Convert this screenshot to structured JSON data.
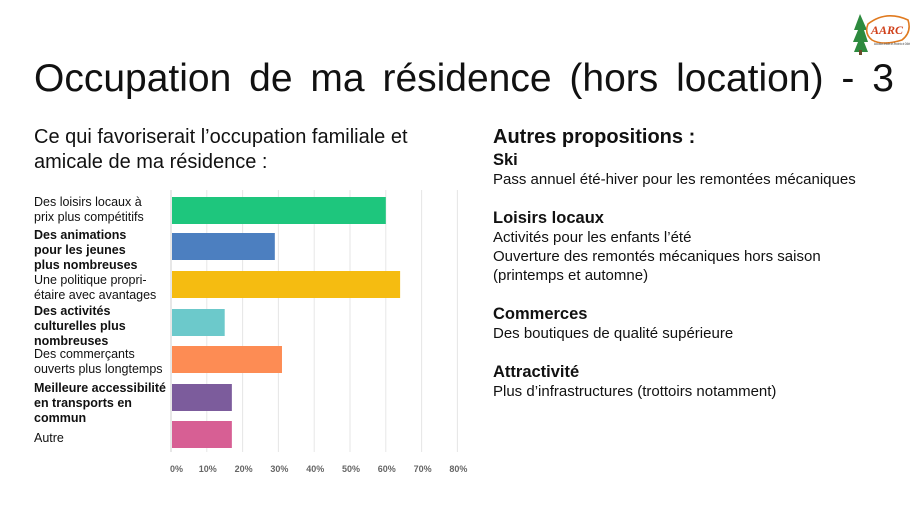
{
  "title_words": [
    "Occupation",
    "de",
    "ma",
    "résidence",
    "(hors",
    "location)",
    "-",
    "3"
  ],
  "subtitle": "Ce qui favoriserait l’occupation familiale et amicale de ma résidence :",
  "logo": {
    "text": "AARC",
    "caption": "Association Amicale des Résidents de Chåtel"
  },
  "chart_data": {
    "type": "bar",
    "orientation": "horizontal",
    "categories": [
      "Des loisirs locaux à prix plus compétitifs",
      "Des animations pour les jeunes plus nombreuses",
      "Une politique propri-étaire avec avantages",
      "Des activités culturelles plus nombreuses",
      "Des commerçants ouverts plus longtemps",
      "Meilleure accessibilité en transports en commun",
      "Autre"
    ],
    "values": [
      60,
      29,
      64,
      15,
      31,
      17,
      17
    ],
    "colors": [
      "#1ec67d",
      "#4c7fc0",
      "#f5bc11",
      "#6cc9cb",
      "#fd8c54",
      "#7c5c9c",
      "#d75f94"
    ],
    "xlim": [
      0,
      80
    ],
    "xticks": [
      "0%",
      "10%",
      "20%",
      "30%",
      "40%",
      "50%",
      "60%",
      "70%",
      "80%"
    ],
    "grid": true
  },
  "label_lines": [
    [
      "Des loisirs locaux à",
      "prix plus compétitifs"
    ],
    [
      "Des animations",
      "pour les jeunes",
      "plus nombreuses"
    ],
    [
      "Une politique propri-",
      "étaire avec avantages"
    ],
    [
      "Des activités",
      "culturelles plus",
      "nombreuses"
    ],
    [
      "Des commerçants",
      "ouverts plus longtemps"
    ],
    [
      "Meilleure accessibilité",
      "en transports en",
      "commun"
    ],
    [
      "Autre"
    ]
  ],
  "right": {
    "heading": "Autres propositions :",
    "sections": [
      {
        "title": "Ski",
        "lines": [
          "Pass annuel été-hiver pour les remontées mécaniques"
        ]
      },
      {
        "title": "Loisirs locaux",
        "lines": [
          "Activités pour les enfants l’été",
          "Ouverture des remontés mécaniques hors saison",
          "(printemps et automne)"
        ]
      },
      {
        "title": "Commerces",
        "lines": [
          "Des boutiques de qualité supérieure"
        ]
      },
      {
        "title": "Attractivité",
        "lines": [
          "Plus d’infrastructures (trottoirs notamment)"
        ]
      }
    ]
  }
}
